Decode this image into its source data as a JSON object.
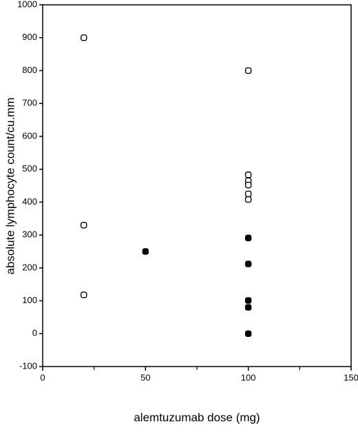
{
  "chart_data": {
    "type": "scatter",
    "x_label": "alemtuzumab dose (mg)",
    "y_label": "absolute lymphocyte count/cu.mm",
    "xlim": [
      0,
      150
    ],
    "xticks": [
      0,
      50,
      100,
      150
    ],
    "xminor_ticks": [
      25,
      75,
      125
    ],
    "ylim": [
      -100,
      1000
    ],
    "yticks": [
      -100,
      0,
      100,
      200,
      300,
      400,
      500,
      600,
      700,
      800,
      900,
      1000
    ],
    "series": [
      {
        "marker": "open",
        "color": "#000000",
        "x": [
          20,
          20,
          20,
          100,
          100,
          100,
          100,
          100,
          100
        ],
        "values": [
          900,
          330,
          118,
          800,
          483,
          465,
          452,
          425,
          408
        ]
      },
      {
        "marker": "filled",
        "color": "#000000",
        "x": [
          50,
          100,
          100,
          100,
          100,
          100
        ],
        "values": [
          250,
          291,
          212,
          101,
          80,
          0
        ]
      }
    ]
  }
}
